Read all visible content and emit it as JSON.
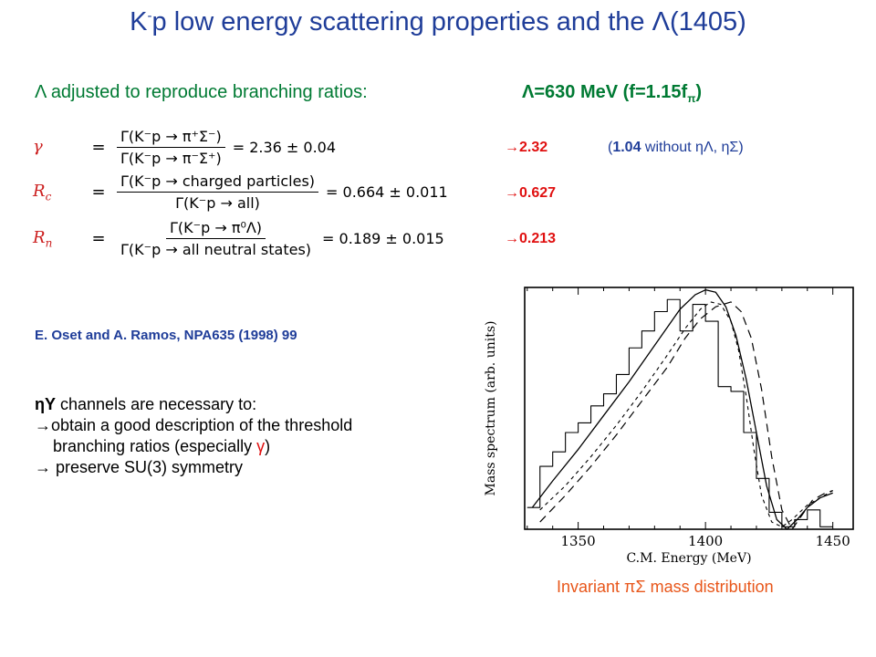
{
  "slide": {
    "title_prefix": "K",
    "title_sup": "-",
    "title_main": "p low energy scattering properties and the Λ(1405)",
    "lambda_adjusted": "Λ adjusted to reproduce branching ratios:",
    "lambda_value_main": "Λ=630 MeV  (f=1.15f",
    "lambda_value_sub": "π",
    "lambda_value_close": ")"
  },
  "equations": [
    {
      "symbol": "γ",
      "symbol_sub": "",
      "numerator": "Γ(K⁻p → π⁺Σ⁻)",
      "denominator": "Γ(K⁻p → π⁻Σ⁺)",
      "result": "= 2.36 ± 0.04"
    },
    {
      "symbol": "R",
      "symbol_sub": "c",
      "numerator": "Γ(K⁻p → charged particles)",
      "denominator": "Γ(K⁻p → all)",
      "result": "= 0.664 ± 0.011"
    },
    {
      "symbol": "R",
      "symbol_sub": "n",
      "numerator": "Γ(K⁻p → π⁰Λ)",
      "denominator": "Γ(K⁻p → all neutral states)",
      "result": "= 0.189 ± 0.015"
    }
  ],
  "results": [
    "→2.32",
    "→0.627",
    "→0.213"
  ],
  "result_note": {
    "open": "(",
    "value": "1.04",
    "text": " without ηΛ, ηΣ)"
  },
  "reference": "E. Oset and A. Ramos, NPA635 (1998) 99",
  "notes": {
    "line1_bold": "ηY",
    "line1": " channels are necessary to:",
    "line2": "→obtain a good description of the threshold",
    "line3": "    branching ratios (especially ",
    "line3_gamma": "γ",
    "line3_close": ")",
    "line4": "→ preserve SU(3) symmetry"
  },
  "caption": "Invariant πΣ mass distribution",
  "chart_data": {
    "type": "line",
    "title": "",
    "xlabel": "C.M. Energy (MeV)",
    "ylabel": "Mass spectrum (arb. units)",
    "xlim": [
      1329,
      1458
    ],
    "ylim": [
      0,
      1.0
    ],
    "xticks": [
      1350,
      1400,
      1450
    ],
    "grid": false,
    "series": [
      {
        "style": "histogram",
        "edges": [
          1330,
          1335,
          1340,
          1345,
          1350,
          1355,
          1360,
          1365,
          1370,
          1375,
          1380,
          1385,
          1390,
          1395,
          1400,
          1405,
          1410,
          1415,
          1420,
          1425,
          1430,
          1435,
          1440,
          1445,
          1450
        ],
        "values": [
          0.09,
          0.26,
          0.32,
          0.4,
          0.44,
          0.51,
          0.56,
          0.64,
          0.75,
          0.82,
          0.9,
          0.95,
          0.82,
          0.93,
          0.86,
          0.59,
          0.57,
          0.4,
          0.21,
          0.07,
          0.01,
          0.04,
          0.08,
          0.01
        ]
      },
      {
        "style": "solid",
        "x": [
          1332,
          1340,
          1350,
          1360,
          1370,
          1380,
          1390,
          1396,
          1400,
          1404,
          1408,
          1412,
          1416,
          1420,
          1424,
          1428,
          1432,
          1436,
          1440,
          1445,
          1450
        ],
        "y": [
          0.09,
          0.2,
          0.33,
          0.47,
          0.61,
          0.76,
          0.91,
          0.97,
          0.99,
          0.98,
          0.92,
          0.8,
          0.62,
          0.4,
          0.18,
          0.04,
          0.0,
          0.04,
          0.09,
          0.13,
          0.15
        ]
      },
      {
        "style": "dashed",
        "x": [
          1335,
          1345,
          1355,
          1365,
          1375,
          1385,
          1392,
          1398,
          1404,
          1410,
          1414,
          1418,
          1422,
          1426,
          1430,
          1434,
          1438,
          1442,
          1447,
          1450
        ],
        "y": [
          0.03,
          0.14,
          0.26,
          0.39,
          0.53,
          0.67,
          0.79,
          0.87,
          0.92,
          0.94,
          0.9,
          0.79,
          0.58,
          0.3,
          0.08,
          0.0,
          0.06,
          0.12,
          0.15,
          0.16
        ]
      },
      {
        "style": "dashed-fine",
        "x": [
          1335,
          1345,
          1355,
          1365,
          1375,
          1385,
          1392,
          1398,
          1402,
          1406,
          1410,
          1413,
          1416,
          1419,
          1422,
          1426,
          1430,
          1434,
          1440,
          1450
        ],
        "y": [
          0.08,
          0.18,
          0.3,
          0.43,
          0.57,
          0.72,
          0.83,
          0.91,
          0.94,
          0.93,
          0.86,
          0.74,
          0.55,
          0.33,
          0.14,
          0.03,
          0.01,
          0.04,
          0.1,
          0.16
        ]
      }
    ]
  }
}
